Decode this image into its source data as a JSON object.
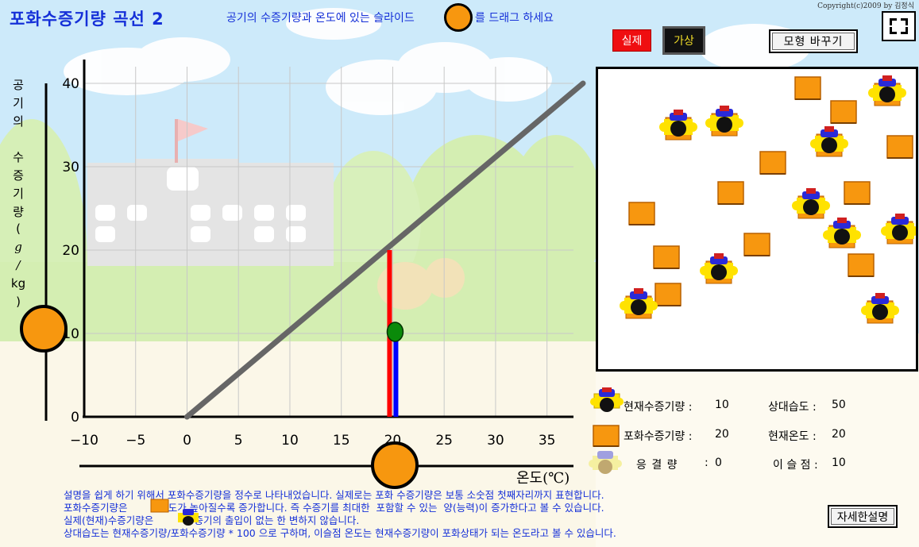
{
  "title": "포화수증기량 곡선 2",
  "instruction": {
    "before": "공기의 수증기량과 온도에 있는 슬라이드",
    "after": "를 드래그 하세요"
  },
  "copyright": "Copyright(c)2009 by 김정식",
  "buttons": {
    "real": "실제",
    "virtual": "가상",
    "change_model": "모형 바꾸기",
    "detail": "자세한설명"
  },
  "y_axis_label": [
    "공",
    "기",
    "의",
    "",
    "수",
    "증",
    "기",
    "량",
    "(",
    "g",
    "/",
    "kg",
    ")"
  ],
  "x_axis_label": "온도(℃)",
  "chart_data": {
    "type": "line",
    "title": "",
    "xlabel": "온도(℃)",
    "ylabel": "공기의 수증기량(g/kg)",
    "xlim": [
      -10,
      38
    ],
    "ylim": [
      0,
      42
    ],
    "x_ticks": [
      "−10",
      "−5",
      "0",
      "5",
      "10",
      "15",
      "20",
      "25",
      "30",
      "35"
    ],
    "y_ticks": [
      "0",
      "10",
      "20",
      "30",
      "40"
    ],
    "grid": true,
    "series": [
      {
        "x": [
          0,
          38.5
        ],
        "y": [
          0,
          40
        ],
        "color": "#666666"
      }
    ],
    "marker": {
      "temperature": 20,
      "vapor": 10,
      "saturation": 20
    },
    "colors": {
      "saturation_bar": "#ff0000",
      "current_bar": "#0000ff",
      "marker": "#0a8a0a",
      "slider": "#f7970f"
    }
  },
  "sliders": {
    "vapor_value": 10,
    "temperature_value": 20
  },
  "molecule_box": {
    "saturation_count": 20,
    "vapor_count": 10
  },
  "legend": {
    "current_vapor": {
      "label": "현재수증기량 :",
      "value": "10"
    },
    "saturation_vapor": {
      "label": "포화수증기량 :",
      "value": "20"
    },
    "condensed": {
      "label": "응 결 량",
      "sep": ":",
      "value": "0"
    },
    "relative_humidity": {
      "label": "상대습도 :",
      "value": "50"
    },
    "current_temp": {
      "label": "현재온도 :",
      "value": "20"
    },
    "dew_point": {
      "label": "이 슬 점 :",
      "value": "10"
    }
  },
  "notes": [
    "설명을 쉽게 하기 위해서 포화수증기량을 정수로 나타내었습니다. 실제로는 포화 수증기량은 보통 소숫점 첫째자리까지 표현합니다.",
    "포화수증기량은          온도가 높아질수록 증가합니다. 즉 수증기를 최대한  포함할 수 있는  양(능력)이 증가한다고 볼 수 있습니다.",
    "실제(현재)수증기량은          수증기의 출입이 없는 한 변하지 않습니다.",
    "상대습도는 현재수증기량/포화수증기량 * 100 으로 구하며, 이슬점 온도는 현재수증기량이 포화상태가 되는 온도라고 볼 수 있습니다."
  ]
}
